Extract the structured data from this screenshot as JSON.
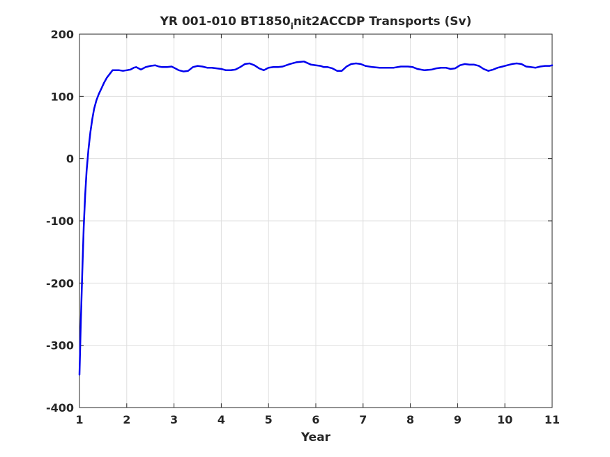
{
  "chart_data": {
    "type": "line",
    "title": {
      "main": "YR 001-010 BT1850",
      "sub": "i",
      "rest": "nit2ACCDP Transports (Sv)"
    },
    "xlabel": "Year",
    "ylabel": "",
    "xlim": [
      1,
      11
    ],
    "ylim": [
      -400,
      200
    ],
    "xticks": [
      1,
      2,
      3,
      4,
      5,
      6,
      7,
      8,
      9,
      10,
      11
    ],
    "yticks": [
      -400,
      -300,
      -200,
      -100,
      0,
      100,
      200
    ],
    "grid": true,
    "series": [
      {
        "color": "#0000ee",
        "x": [
          1.0,
          1.03,
          1.06,
          1.09,
          1.12,
          1.15,
          1.19,
          1.23,
          1.27,
          1.31,
          1.36,
          1.41,
          1.46,
          1.52,
          1.58,
          1.64,
          1.7,
          1.77,
          1.84,
          1.92,
          2.0,
          2.08,
          2.15,
          2.2,
          2.3,
          2.4,
          2.5,
          2.6,
          2.68,
          2.75,
          2.85,
          2.95,
          3.0,
          3.1,
          3.2,
          3.3,
          3.4,
          3.5,
          3.6,
          3.7,
          3.8,
          3.9,
          4.0,
          4.1,
          4.2,
          4.3,
          4.4,
          4.5,
          4.6,
          4.7,
          4.8,
          4.9,
          5.0,
          5.1,
          5.2,
          5.3,
          5.45,
          5.6,
          5.75,
          5.9,
          6.0,
          6.1,
          6.17,
          6.25,
          6.35,
          6.45,
          6.55,
          6.65,
          6.75,
          6.85,
          6.95,
          7.05,
          7.2,
          7.35,
          7.5,
          7.65,
          7.8,
          7.95,
          8.05,
          8.15,
          8.3,
          8.45,
          8.55,
          8.65,
          8.75,
          8.85,
          8.95,
          9.05,
          9.15,
          9.25,
          9.35,
          9.45,
          9.55,
          9.65,
          9.75,
          9.85,
          9.95,
          10.05,
          10.15,
          10.25,
          10.35,
          10.45,
          10.55,
          10.65,
          10.75,
          10.85,
          10.95,
          11.0
        ],
        "values": [
          -347,
          -260,
          -180,
          -110,
          -60,
          -20,
          15,
          42,
          63,
          80,
          94,
          104,
          112,
          122,
          130,
          136,
          142,
          142,
          142,
          141,
          142,
          143,
          146,
          147,
          143,
          147,
          149,
          150,
          148,
          147,
          147,
          148,
          146,
          142,
          140,
          141,
          147,
          149,
          148,
          146,
          146,
          145,
          144,
          142,
          142,
          143,
          147,
          152,
          153,
          150,
          145,
          142,
          146,
          147,
          147,
          148,
          152,
          155,
          156,
          151,
          150,
          149,
          147,
          147,
          145,
          141,
          141,
          148,
          152,
          153,
          152,
          149,
          147,
          146,
          146,
          146,
          148,
          148,
          147,
          144,
          142,
          143,
          145,
          146,
          146,
          144,
          145,
          150,
          152,
          151,
          151,
          149,
          144,
          141,
          143,
          146,
          148,
          150,
          152,
          153,
          152,
          148,
          147,
          146,
          148,
          149,
          149,
          150
        ]
      }
    ]
  }
}
